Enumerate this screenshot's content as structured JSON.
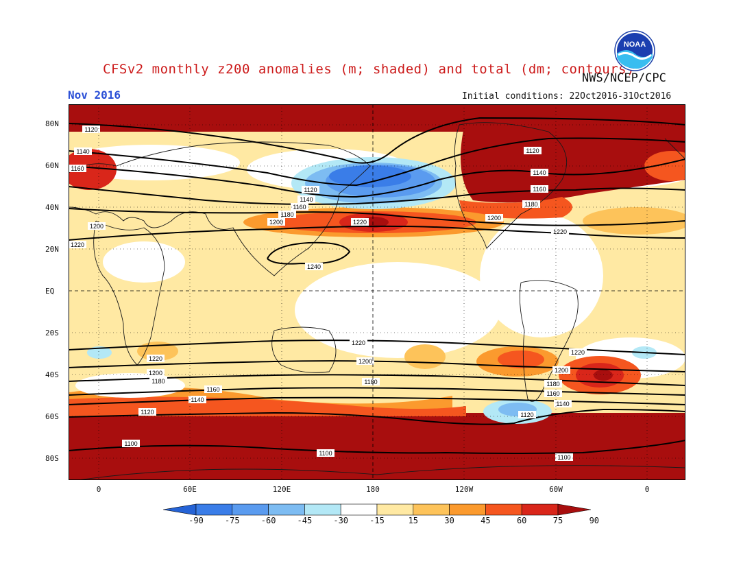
{
  "header": {
    "title": "CFSv2 monthly z200 anomalies (m; shaded) and total (dm; contours)",
    "org": "NWS/NCEP/CPC",
    "month": "Nov 2016",
    "initial_conditions": "Initial conditions: 22Oct2016-31Oct2016",
    "logo_text": "NOAA"
  },
  "axes": {
    "lat_labels": [
      "80N",
      "60N",
      "40N",
      "20N",
      "EQ",
      "20S",
      "40S",
      "60S",
      "80S"
    ],
    "lon_labels": [
      "0",
      "60E",
      "120E",
      "180",
      "120W",
      "60W",
      "0"
    ]
  },
  "colorbar": {
    "labels": [
      "-90",
      "-75",
      "-60",
      "-45",
      "-30",
      "-15",
      "15",
      "30",
      "45",
      "60",
      "75",
      "90"
    ],
    "colors": [
      "#2563d6",
      "#3a7de8",
      "#5a9bef",
      "#7dbcf2",
      "#b3e8f6",
      "#ffffff",
      "#ffe9a3",
      "#fdc35a",
      "#fb9a2e",
      "#f5561f",
      "#d9261a",
      "#a80e0e"
    ]
  },
  "contours": {
    "labels": [
      "1100",
      "1120",
      "1140",
      "1160",
      "1180",
      "1200",
      "1220",
      "1240"
    ],
    "line_color": "#000000"
  },
  "palette": {
    "land": "#1a1a1a",
    "strong_positive": "#a80e0e",
    "negative": "#3a7de8"
  }
}
